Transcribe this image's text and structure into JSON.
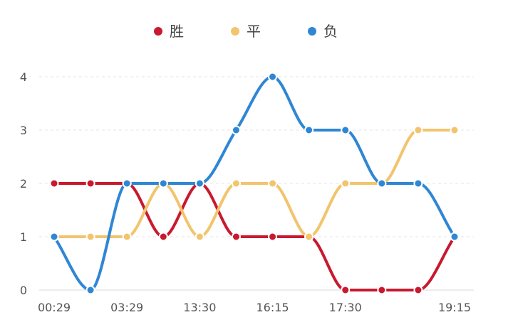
{
  "chart_data": {
    "type": "line",
    "title": "",
    "xlabel": "",
    "ylabel": "",
    "x": [
      "00:29",
      "",
      "03:29",
      "",
      "13:30",
      "",
      "16:15",
      "",
      "17:30",
      "",
      "",
      "19:15"
    ],
    "x_tick_labels": [
      "00:29",
      "03:29",
      "13:30",
      "16:15",
      "17:30",
      "19:15"
    ],
    "y_ticks": [
      0,
      1,
      2,
      3,
      4
    ],
    "ylim": [
      0,
      4
    ],
    "grid": true,
    "legend": "top-center",
    "series": [
      {
        "name": "胜",
        "color": "#c9192e",
        "values": [
          2,
          2,
          2,
          1,
          2,
          1,
          1,
          1,
          0,
          0,
          0,
          1
        ]
      },
      {
        "name": "平",
        "color": "#f2c46d",
        "values": [
          1,
          1,
          1,
          2,
          1,
          2,
          2,
          1,
          2,
          2,
          3,
          3
        ]
      },
      {
        "name": "负",
        "color": "#2f86d4",
        "values": [
          1,
          0,
          2,
          2,
          2,
          3,
          4,
          3,
          3,
          2,
          2,
          1
        ]
      }
    ]
  }
}
